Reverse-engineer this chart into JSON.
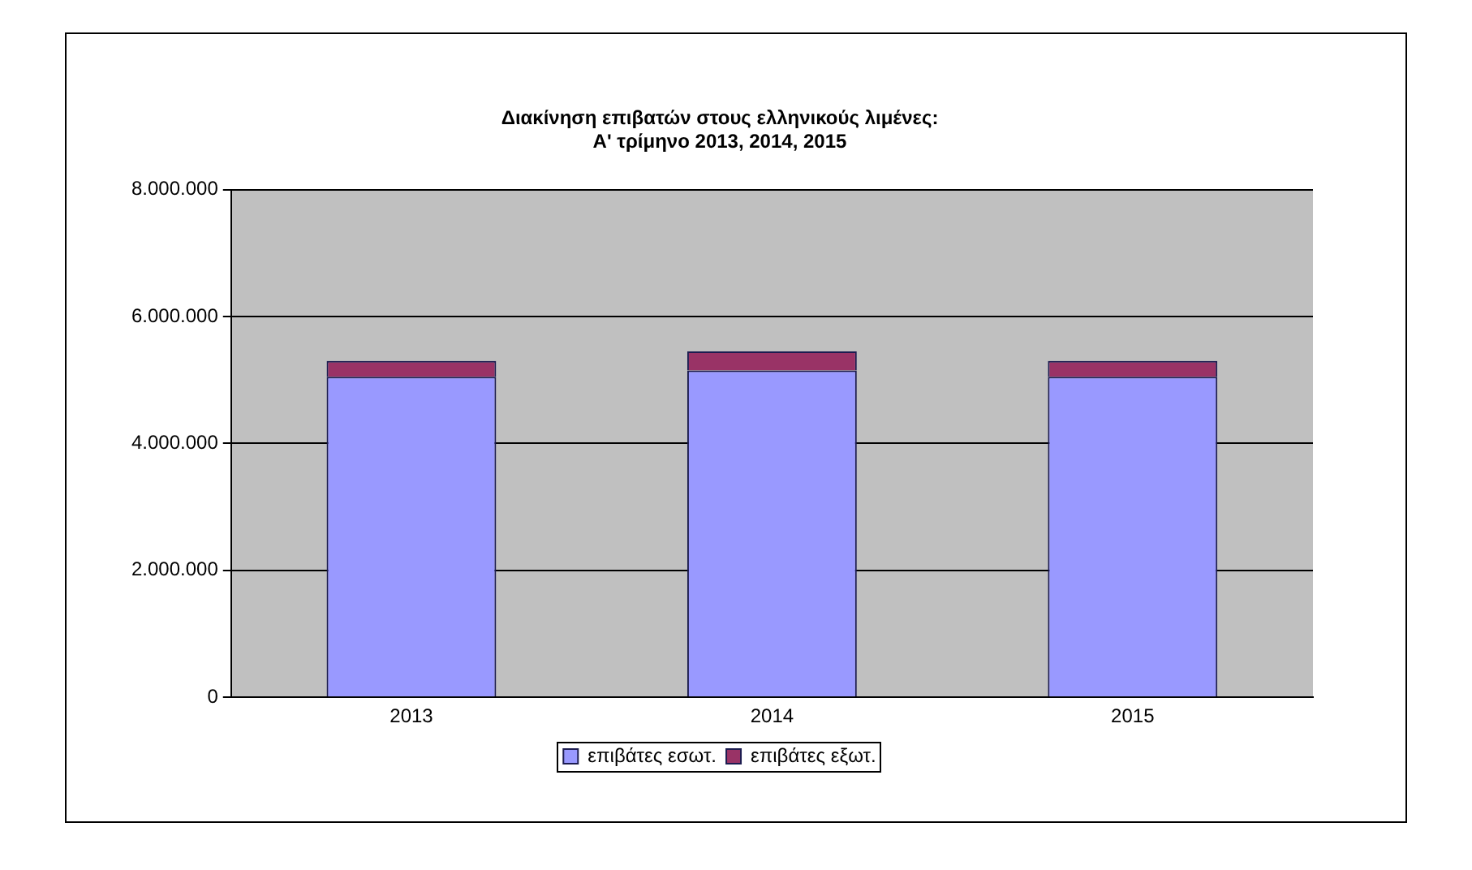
{
  "chart_data": {
    "type": "bar",
    "title": "Διακίνηση επιβατών στους ελληνικούς λιμένες:\nΑ' τρίμηνο 2013, 2014, 2015",
    "categories": [
      "2013",
      "2014",
      "2015"
    ],
    "series": [
      {
        "name": "επιβάτες εσωτ.",
        "color": "#9999ff",
        "values": [
          5050000,
          5150000,
          5050000
        ]
      },
      {
        "name": "επιβάτες εξωτ.",
        "color": "#993366",
        "values": [
          250000,
          300000,
          250000
        ]
      }
    ],
    "stacked": true,
    "ylim": [
      0,
      8000000
    ],
    "yticks": [
      0,
      {
        "value": 2000000,
        "label": "2.000.000"
      },
      {
        "value": 4000000,
        "label": "4.000.000"
      },
      {
        "value": 6000000,
        "label": "6.000.000"
      },
      {
        "value": 8000000,
        "label": "8.000.000"
      }
    ],
    "grid": "y",
    "legend": "bottom"
  }
}
